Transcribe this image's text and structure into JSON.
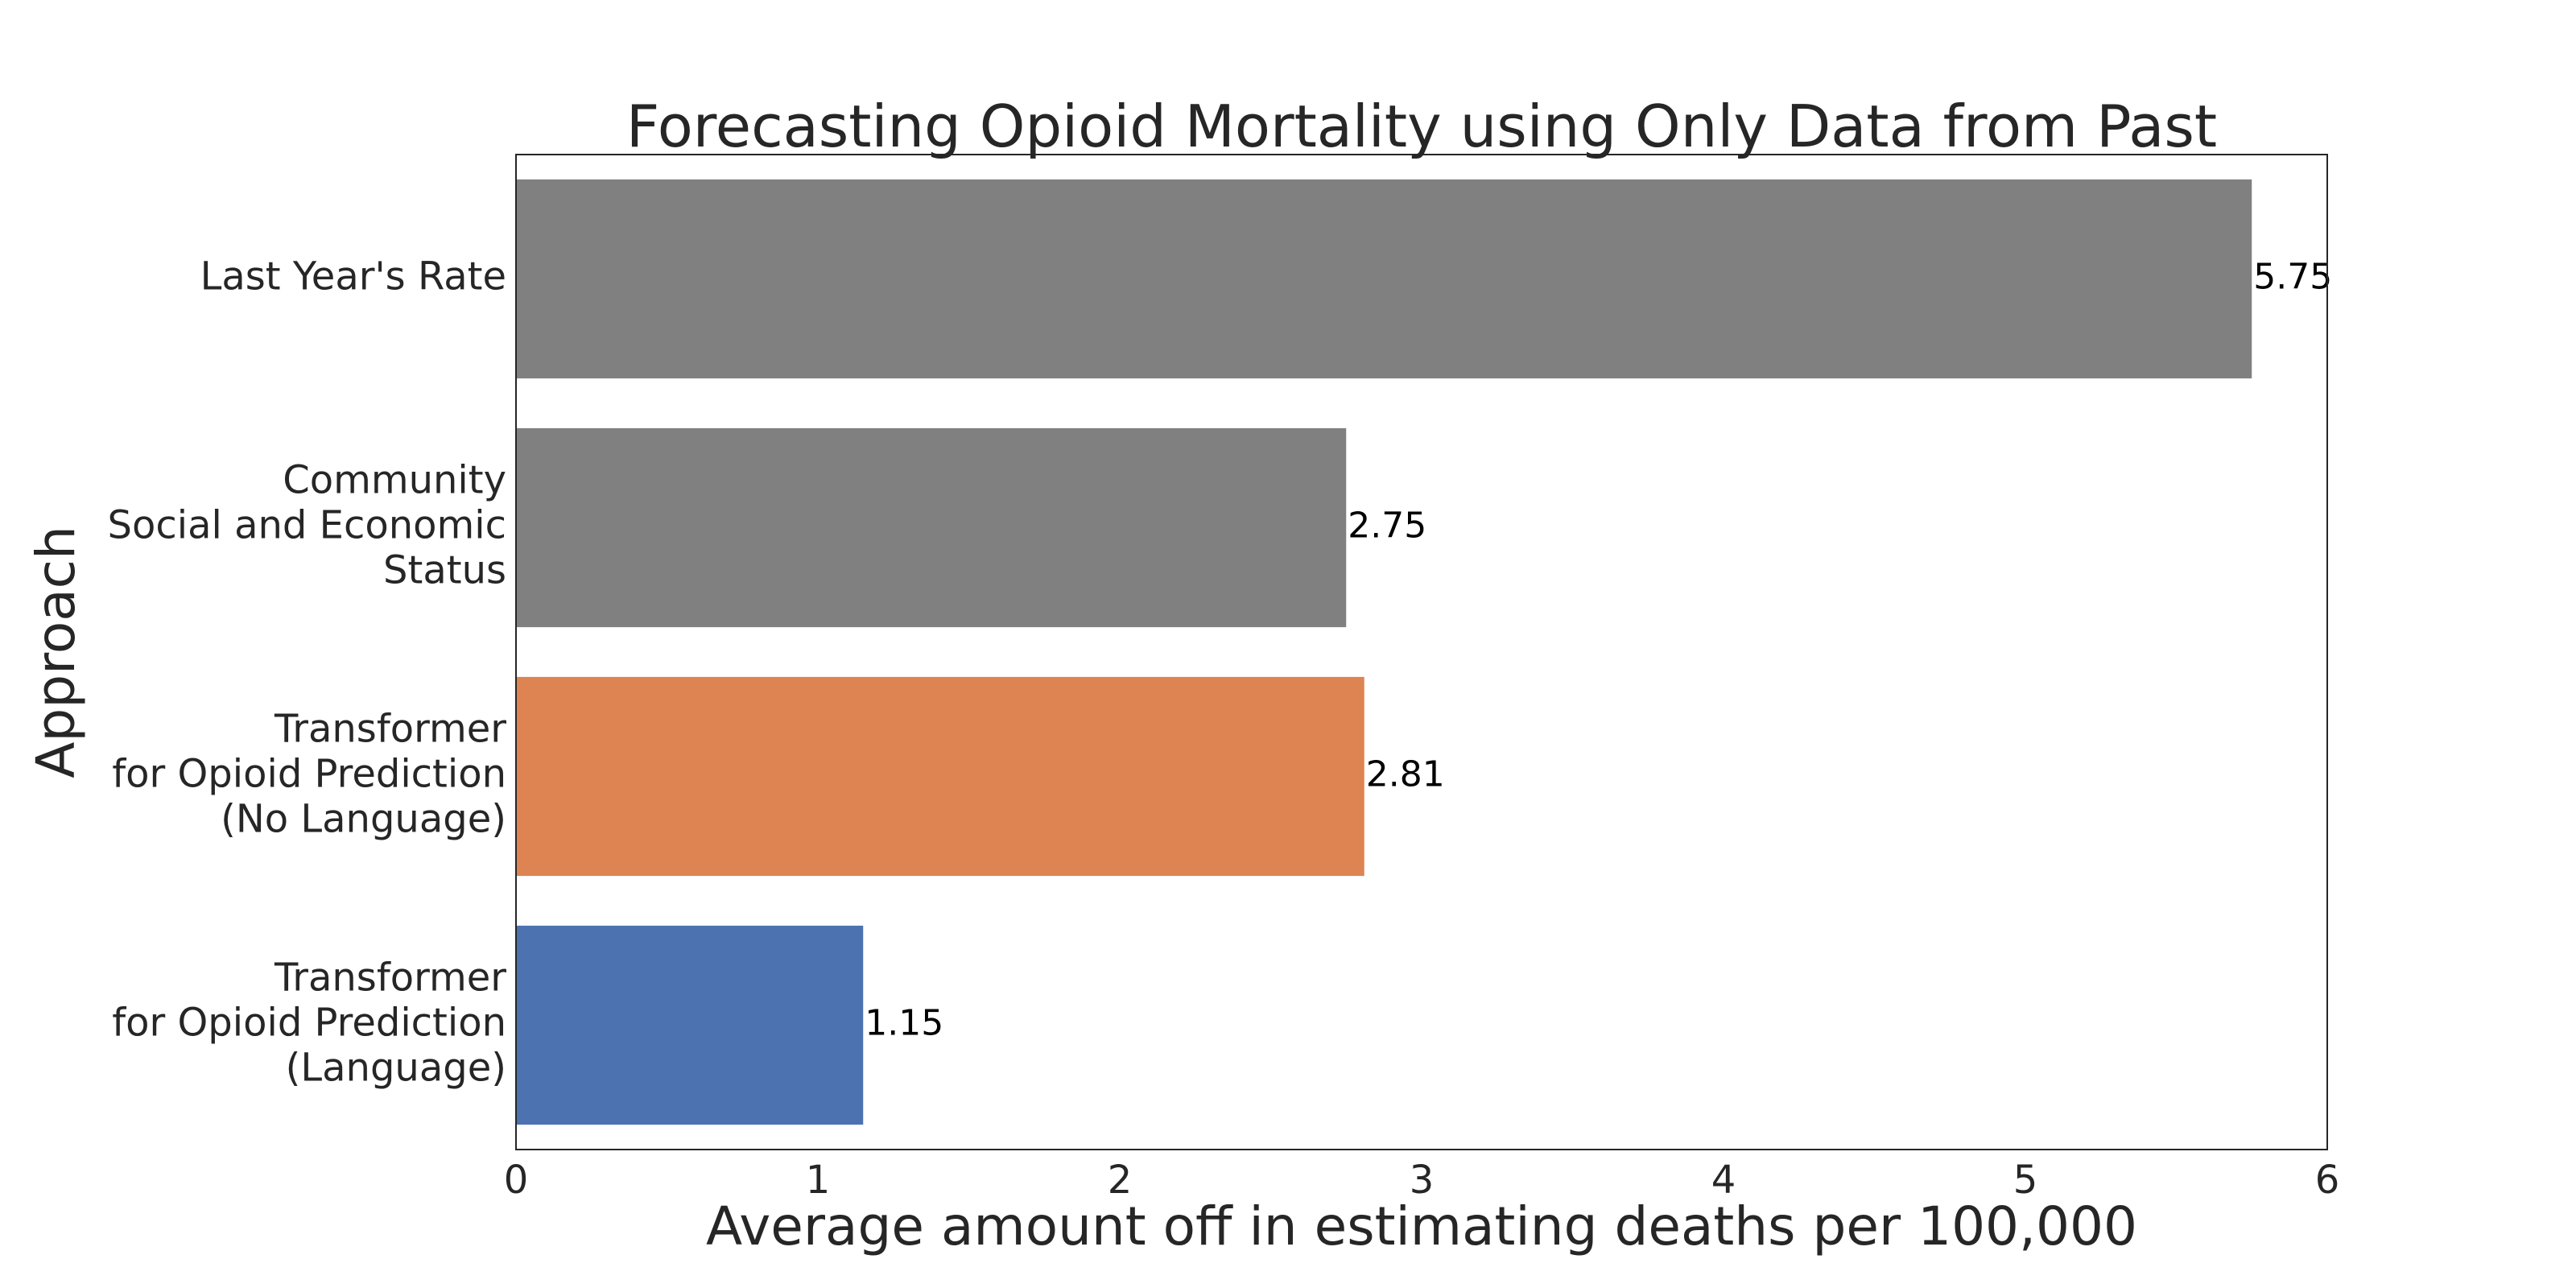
{
  "chart_data": {
    "type": "bar",
    "orientation": "horizontal",
    "title": "Forecasting Opioid Mortality using Only Data from Past",
    "xlabel": "Average amount off in estimating deaths per 100,000",
    "ylabel": "Approach",
    "xlim": [
      0,
      6
    ],
    "xticks": [
      "0",
      "1",
      "2",
      "3",
      "4",
      "5",
      "6"
    ],
    "grid": false,
    "categories": [
      [
        "Last Year's Rate"
      ],
      [
        "Community",
        "Social and Economic",
        "Status"
      ],
      [
        "Transformer",
        "for Opioid Prediction",
        "(No Language)"
      ],
      [
        "Transformer",
        "for Opioid Prediction",
        "(Language)"
      ]
    ],
    "values": [
      5.75,
      2.75,
      2.81,
      1.15
    ],
    "value_labels": [
      "5.75",
      "2.75",
      "2.81",
      "1.15"
    ],
    "colors": [
      "#808080",
      "#808080",
      "#dd8452",
      "#4c72b0"
    ],
    "frame_color": "#262626"
  }
}
